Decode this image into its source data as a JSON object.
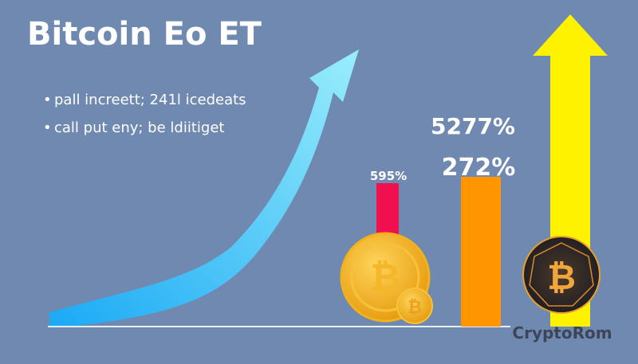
{
  "header": {
    "title": "Bitcoin Eo ET"
  },
  "bullets": [
    "pall increett;  241l icedeats",
    "call put eny; be ldiitiget"
  ],
  "labels": {
    "red_bar": "595%",
    "orange_bar": "272%",
    "top": "5277%"
  },
  "watermark": "CryptoRom"
}
